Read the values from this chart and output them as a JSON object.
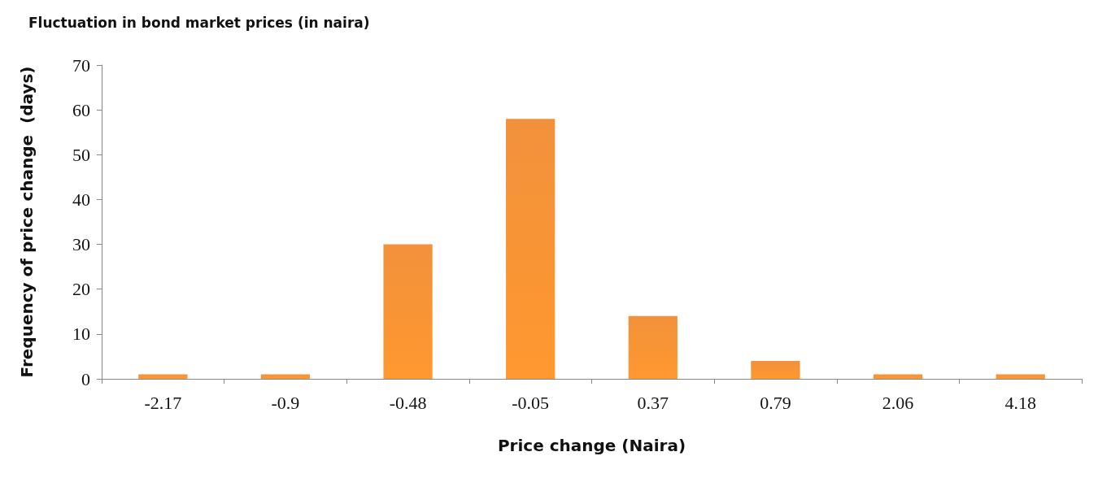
{
  "chart_data": {
    "type": "bar",
    "title": "Fluctuation in bond market prices (in naira)",
    "xlabel": "Price change (Naira)",
    "ylabel": "Frequency of price change  (days)",
    "categories": [
      "-2.17",
      "-0.9",
      "-0.48",
      "-0.05",
      "0.37",
      "0.79",
      "2.06",
      "4.18"
    ],
    "values": [
      1,
      1,
      30,
      58,
      14,
      4,
      1,
      1
    ],
    "color": "#f0882a",
    "ylim": [
      0,
      70
    ],
    "yticks": [
      0,
      10,
      20,
      30,
      40,
      50,
      60,
      70
    ],
    "grid": false
  }
}
